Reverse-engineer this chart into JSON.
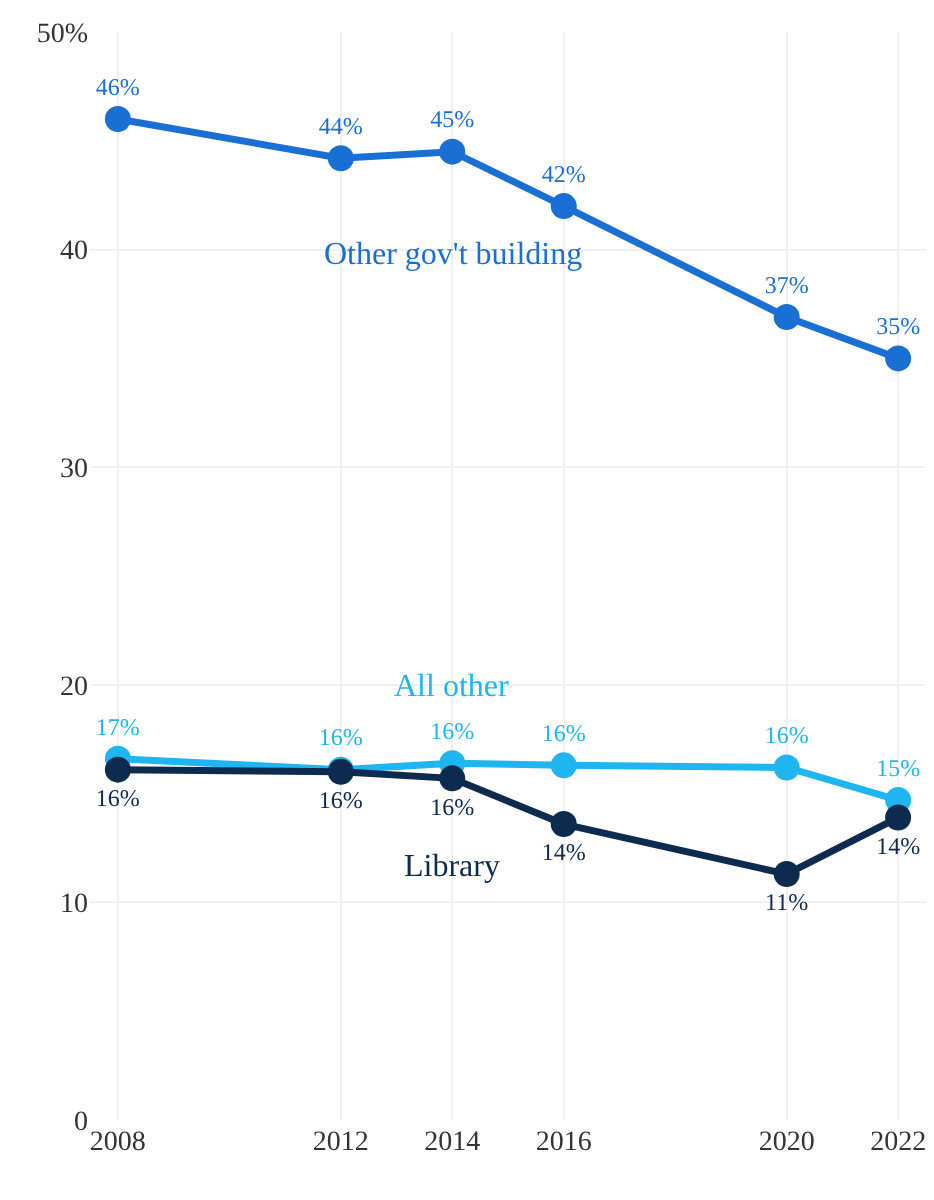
{
  "chart_data": {
    "type": "line",
    "x": [
      2008,
      2012,
      2014,
      2016,
      2020,
      2022
    ],
    "series": [
      {
        "name": "Other gov't building",
        "color": "#1a6fd4",
        "values": [
          46.0,
          44.2,
          44.5,
          42.0,
          36.9,
          35.0
        ],
        "value_labels": [
          "46%",
          "44%",
          "45%",
          "42%",
          "37%",
          "35%"
        ]
      },
      {
        "name": "All other",
        "color": "#1fb5f0",
        "values": [
          16.6,
          16.1,
          16.4,
          16.3,
          16.2,
          14.7
        ],
        "value_labels": [
          "17%",
          "16%",
          "16%",
          "16%",
          "16%",
          "15%"
        ]
      },
      {
        "name": "Library",
        "color": "#0d2a4f",
        "values": [
          16.1,
          16.0,
          15.7,
          13.6,
          11.3,
          13.9
        ],
        "value_labels": [
          "16%",
          "16%",
          "16%",
          "14%",
          "11%",
          "14%"
        ]
      }
    ],
    "xlim": [
      2007.5,
      2022.5
    ],
    "xticks": [
      2008,
      2012,
      2014,
      2016,
      2020,
      2022
    ],
    "ylim": [
      0,
      50
    ],
    "yticks": [
      0,
      10,
      20,
      30,
      40,
      {
        "value": 50,
        "label": "50%"
      }
    ],
    "grid": true,
    "legend": false,
    "marker": "circle",
    "line_style": "solid"
  }
}
